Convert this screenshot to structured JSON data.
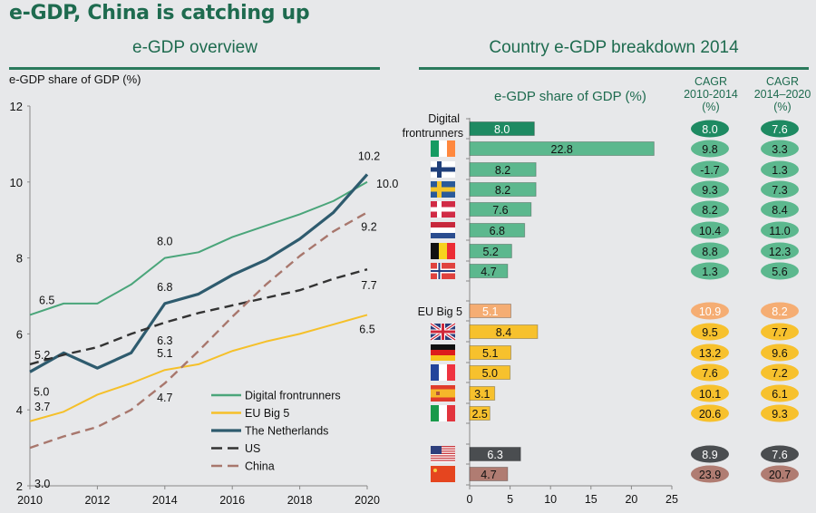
{
  "title": "e-GDP, China is catching up",
  "left_section_title": "e-GDP overview",
  "right_section_title": "Country e-GDP breakdown 2014",
  "colors": {
    "frontrunners_dark": "#1e8a62",
    "frontrunners": "#5cb88e",
    "eu_big5_avg": "#f5ad73",
    "eu_big5": "#f7c12d",
    "us": "#4a4d50",
    "china": "#b07c72",
    "netherlands": "#2e5b6e",
    "accent": "#1e6b4f"
  },
  "chart_data": [
    {
      "type": "line",
      "title": "e-GDP overview",
      "ylabel": "e-GDP share of GDP (%)",
      "xlabel": "",
      "x": [
        2010,
        2011,
        2012,
        2013,
        2014,
        2015,
        2016,
        2017,
        2018,
        2019,
        2020
      ],
      "xticks": [
        "2010",
        "2012",
        "2014",
        "2016",
        "2018",
        "2020"
      ],
      "yticks": [
        "2",
        "4",
        "6",
        "8",
        "10",
        "12"
      ],
      "xlim": [
        2010,
        2020
      ],
      "ylim": [
        2,
        12
      ],
      "grid": false,
      "legend_position": "bottom-right",
      "series": [
        {
          "name": "Digital frontrunners",
          "values": [
            6.5,
            6.8,
            6.8,
            7.3,
            8.0,
            8.15,
            8.55,
            8.85,
            9.15,
            9.5,
            10.0
          ],
          "style": "solid",
          "color": "#4aa57a"
        },
        {
          "name": "EU Big 5",
          "values": [
            3.7,
            3.95,
            4.4,
            4.7,
            5.05,
            5.2,
            5.55,
            5.8,
            6.0,
            6.25,
            6.5
          ],
          "style": "solid",
          "color": "#f5c02a"
        },
        {
          "name": "The Netherlands",
          "values": [
            5.0,
            5.5,
            5.1,
            5.5,
            6.8,
            7.05,
            7.55,
            7.95,
            8.5,
            9.2,
            10.2
          ],
          "style": "solid-thick",
          "color": "#2e5b6e"
        },
        {
          "name": "US",
          "values": [
            5.2,
            5.45,
            5.65,
            6.0,
            6.3,
            6.55,
            6.75,
            6.95,
            7.15,
            7.45,
            7.7
          ],
          "style": "dashed",
          "color": "#333333"
        },
        {
          "name": "China",
          "values": [
            3.0,
            3.3,
            3.55,
            4.0,
            4.7,
            5.55,
            6.45,
            7.3,
            8.05,
            8.7,
            9.2
          ],
          "style": "dashed",
          "color": "#a8776d"
        }
      ],
      "annotations": [
        {
          "text": "6.5",
          "series": "Digital frontrunners",
          "x": 2010
        },
        {
          "text": "8.0",
          "series": "Digital frontrunners",
          "x": 2014
        },
        {
          "text": "10.0",
          "series": "Digital frontrunners",
          "x": 2020
        },
        {
          "text": "3.7",
          "series": "EU Big 5",
          "x": 2010
        },
        {
          "text": "5.1",
          "series": "EU Big 5",
          "x": 2014
        },
        {
          "text": "6.5",
          "series": "EU Big 5",
          "x": 2020
        },
        {
          "text": "5.0",
          "series": "The Netherlands",
          "x": 2010
        },
        {
          "text": "6.8",
          "series": "The Netherlands",
          "x": 2014
        },
        {
          "text": "10.2",
          "series": "The Netherlands",
          "x": 2020
        },
        {
          "text": "5.2",
          "series": "US",
          "x": 2010
        },
        {
          "text": "6.3",
          "series": "US",
          "x": 2014
        },
        {
          "text": "7.7",
          "series": "US",
          "x": 2020
        },
        {
          "text": "3.0",
          "series": "China",
          "x": 2010
        },
        {
          "text": "4.7",
          "series": "China",
          "x": 2014
        },
        {
          "text": "9.2",
          "series": "China",
          "x": 2020
        }
      ]
    },
    {
      "type": "bar",
      "orientation": "horizontal",
      "title": "e-GDP share of GDP (%)",
      "xlabel": "",
      "xlim": [
        0,
        25
      ],
      "xticks": [
        "0",
        "5",
        "10",
        "15",
        "20",
        "25"
      ],
      "grid": false,
      "rows": [
        {
          "label": "Digital frontrunners",
          "flag": "",
          "value": 8.0,
          "label_text": "8.0",
          "group": "frontrunners-avg",
          "cagr_2010_2014": "8.0",
          "cagr_2014_2020": "7.6"
        },
        {
          "label": "Ireland",
          "flag": "ireland-flag-icon",
          "value": 22.8,
          "label_text": "22.8",
          "group": "frontrunners",
          "cagr_2010_2014": "9.8",
          "cagr_2014_2020": "3.3"
        },
        {
          "label": "Finland",
          "flag": "finland-flag-icon",
          "value": 8.2,
          "label_text": "8.2",
          "group": "frontrunners",
          "cagr_2010_2014": "-1.7",
          "cagr_2014_2020": "1.3"
        },
        {
          "label": "Sweden",
          "flag": "sweden-flag-icon",
          "value": 8.2,
          "label_text": "8.2",
          "group": "frontrunners",
          "cagr_2010_2014": "9.3",
          "cagr_2014_2020": "7.3"
        },
        {
          "label": "Denmark",
          "flag": "denmark-flag-icon",
          "value": 7.6,
          "label_text": "7.6",
          "group": "frontrunners",
          "cagr_2010_2014": "8.2",
          "cagr_2014_2020": "8.4"
        },
        {
          "label": "Netherlands",
          "flag": "netherlands-flag-icon",
          "value": 6.8,
          "label_text": "6.8",
          "group": "frontrunners",
          "cagr_2010_2014": "10.4",
          "cagr_2014_2020": "11.0"
        },
        {
          "label": "Belgium",
          "flag": "belgium-flag-icon",
          "value": 5.2,
          "label_text": "5.2",
          "group": "frontrunners",
          "cagr_2010_2014": "8.8",
          "cagr_2014_2020": "12.3"
        },
        {
          "label": "Norway",
          "flag": "norway-flag-icon",
          "value": 4.7,
          "label_text": "4.7",
          "group": "frontrunners",
          "cagr_2010_2014": "1.3",
          "cagr_2014_2020": "5.6"
        },
        {
          "label": "EU Big 5",
          "flag": "",
          "value": 5.1,
          "label_text": "5.1",
          "group": "eu-avg",
          "cagr_2010_2014": "10.9",
          "cagr_2014_2020": "8.2"
        },
        {
          "label": "United Kingdom",
          "flag": "uk-flag-icon",
          "value": 8.4,
          "label_text": "8.4",
          "group": "eu",
          "cagr_2010_2014": "9.5",
          "cagr_2014_2020": "7.7"
        },
        {
          "label": "Germany",
          "flag": "germany-flag-icon",
          "value": 5.1,
          "label_text": "5.1",
          "group": "eu",
          "cagr_2010_2014": "13.2",
          "cagr_2014_2020": "9.6"
        },
        {
          "label": "France",
          "flag": "france-flag-icon",
          "value": 5.0,
          "label_text": "5.0",
          "group": "eu",
          "cagr_2010_2014": "7.6",
          "cagr_2014_2020": "7.2"
        },
        {
          "label": "Spain",
          "flag": "spain-flag-icon",
          "value": 3.1,
          "label_text": "3.1",
          "group": "eu",
          "cagr_2010_2014": "10.1",
          "cagr_2014_2020": "6.1"
        },
        {
          "label": "Italy",
          "flag": "italy-flag-icon",
          "value": 2.5,
          "label_text": "2.5",
          "group": "eu",
          "cagr_2010_2014": "20.6",
          "cagr_2014_2020": "9.3"
        },
        {
          "label": "United States",
          "flag": "us-flag-icon",
          "value": 6.3,
          "label_text": "6.3",
          "group": "us",
          "cagr_2010_2014": "8.9",
          "cagr_2014_2020": "7.6"
        },
        {
          "label": "China",
          "flag": "china-flag-icon",
          "value": 4.7,
          "label_text": "4.7",
          "group": "china",
          "cagr_2010_2014": "23.9",
          "cagr_2014_2020": "20.7"
        }
      ],
      "cagr_headers": [
        {
          "line1": "CAGR",
          "line2": "2010-2014",
          "line3": "(%)"
        },
        {
          "line1": "CAGR",
          "line2": "2014–2020",
          "line3": "(%)"
        }
      ]
    }
  ],
  "group_labels": {
    "frontrunners_line1": "Digital",
    "frontrunners_line2": "frontrunners",
    "eu": "EU Big 5"
  }
}
